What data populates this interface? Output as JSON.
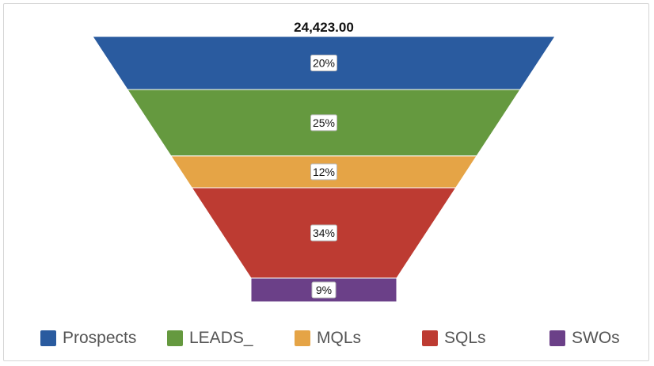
{
  "chart_data": {
    "type": "funnel",
    "total_label": "24,423.00",
    "series": [
      {
        "name": "Prospects",
        "percent_label": "20%",
        "value": 20,
        "color": "#2a5b9f"
      },
      {
        "name": "LEADS_",
        "percent_label": "25%",
        "value": 25,
        "color": "#65993f"
      },
      {
        "name": "MQLs",
        "percent_label": "12%",
        "value": 12,
        "color": "#e5a446"
      },
      {
        "name": "SQLs",
        "percent_label": "34%",
        "value": 34,
        "color": "#bd3b32"
      },
      {
        "name": "SWOs",
        "percent_label": "9%",
        "value": 9,
        "color": "#6b4088"
      }
    ],
    "legend_position": "bottom",
    "grid": false
  }
}
